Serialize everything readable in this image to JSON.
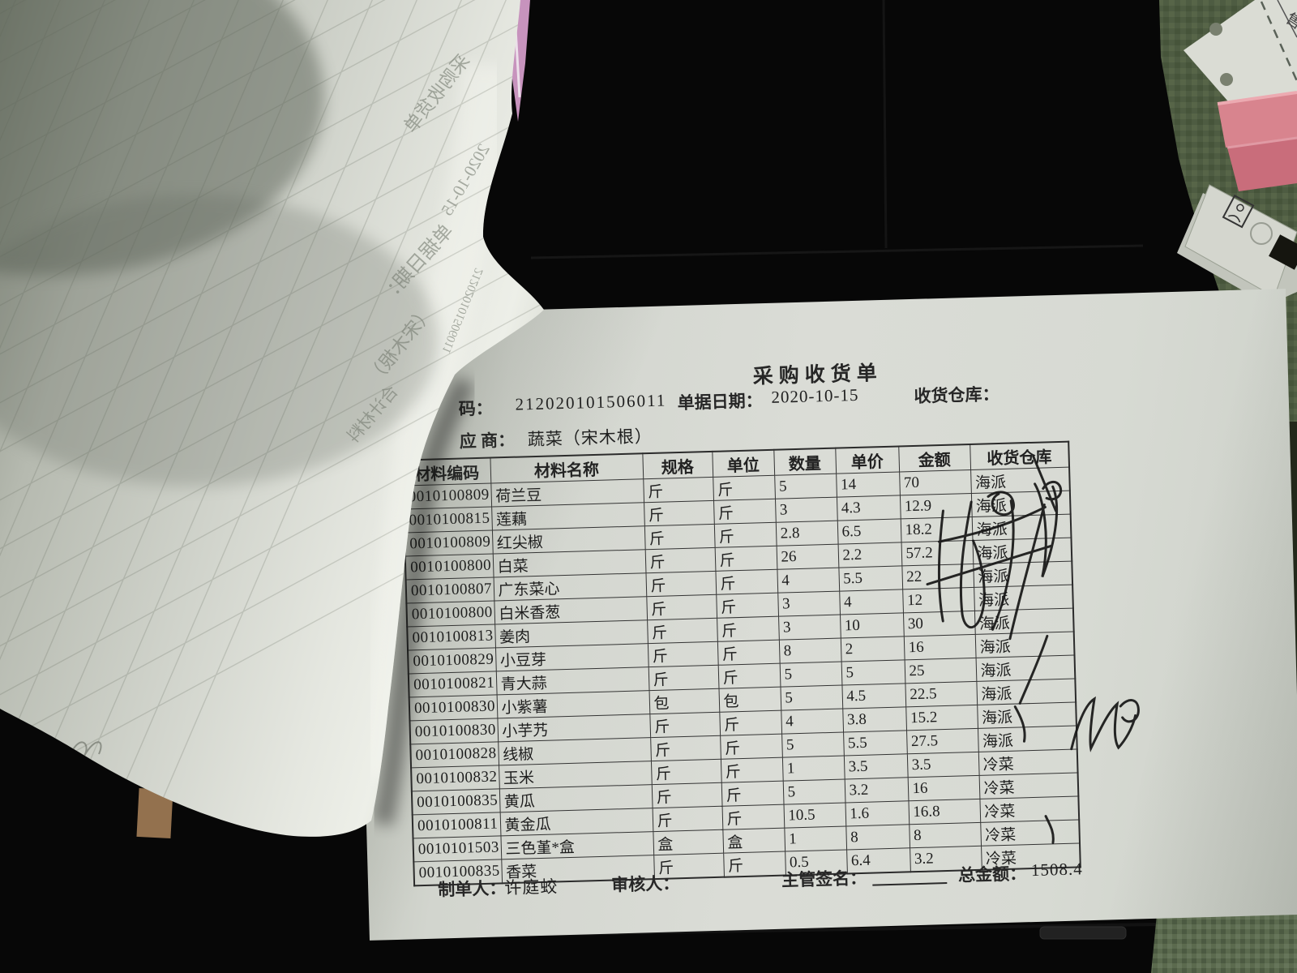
{
  "receipt": {
    "title": "采购收货单",
    "code_label": "码：",
    "code_value": "212020101506011",
    "date_label": "单据日期：",
    "date_value": "2020-10-15",
    "warehouse_label": "收货仓库：",
    "supplier_label": "应 商：",
    "supplier_value": "蔬菜（宋木根）",
    "table": {
      "headers": [
        "材料编码",
        "材料名称",
        "规格",
        "单位",
        "数量",
        "单价",
        "金额",
        "收货仓库"
      ],
      "rows": [
        [
          "0010100809",
          "荷兰豆",
          "斤",
          "斤",
          "5",
          "14",
          "70",
          "海派"
        ],
        [
          "0010100815",
          "莲藕",
          "斤",
          "斤",
          "3",
          "4.3",
          "12.9",
          "海派"
        ],
        [
          "0010100809",
          "红尖椒",
          "斤",
          "斤",
          "2.8",
          "6.5",
          "18.2",
          "海派"
        ],
        [
          "0010100800",
          "白菜",
          "斤",
          "斤",
          "26",
          "2.2",
          "57.2",
          "海派"
        ],
        [
          "0010100807",
          "广东菜心",
          "斤",
          "斤",
          "4",
          "5.5",
          "22",
          "海派"
        ],
        [
          "0010100800",
          "白米香葱",
          "斤",
          "斤",
          "3",
          "4",
          "12",
          "海派"
        ],
        [
          "0010100813",
          "姜肉",
          "斤",
          "斤",
          "3",
          "10",
          "30",
          "海派"
        ],
        [
          "0010100829",
          "小豆芽",
          "斤",
          "斤",
          "8",
          "2",
          "16",
          "海派"
        ],
        [
          "0010100821",
          "青大蒜",
          "斤",
          "斤",
          "5",
          "5",
          "25",
          "海派"
        ],
        [
          "0010100830",
          "小紫薯",
          "包",
          "包",
          "5",
          "4.5",
          "22.5",
          "海派"
        ],
        [
          "0010100830",
          "小芋艿",
          "斤",
          "斤",
          "4",
          "3.8",
          "15.2",
          "海派"
        ],
        [
          "0010100828",
          "线椒",
          "斤",
          "斤",
          "5",
          "5.5",
          "27.5",
          "海派"
        ],
        [
          "0010100832",
          "玉米",
          "斤",
          "斤",
          "1",
          "3.5",
          "3.5",
          "冷菜"
        ],
        [
          "0010100835",
          "黄瓜",
          "斤",
          "斤",
          "5",
          "3.2",
          "16",
          "冷菜"
        ],
        [
          "0010100811",
          "黄金瓜",
          "斤",
          "斤",
          "10.5",
          "1.6",
          "16.8",
          "冷菜"
        ],
        [
          "0010101503",
          "三色堇*盒",
          "盒",
          "盒",
          "1",
          "8",
          "8",
          "冷菜"
        ],
        [
          "0010100835",
          "香菜",
          "斤",
          "斤",
          "0.5",
          "6.4",
          "3.2",
          "冷菜"
        ]
      ]
    },
    "footer": {
      "maker_label": "制单人：",
      "maker_value": "许庭蛟",
      "auditor_label": "审核人：",
      "sign_label": "主管签名：",
      "total_label": "总金额：",
      "total_value": "1508.4"
    }
  },
  "folded_sheet": {
    "ghost_texts": [
      "采购收货单",
      "2020-10-15",
      "单据日期：",
      "（宋木根）",
      "合计材料",
      "212020101506011"
    ]
  },
  "props": {
    "paper_char": "售"
  },
  "colors": {
    "desk": "#070707",
    "desk_green": "#55644a",
    "paper": "#d8dbd4",
    "fold_paper": "#c9ccc4",
    "pink_box": "#d8848e",
    "pink_sliver": "#c793bd",
    "ink": "#1c1c1c"
  }
}
